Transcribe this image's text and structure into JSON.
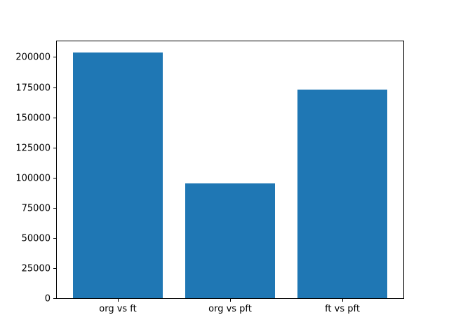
{
  "figure": {
    "background": "#ffffff",
    "spine_color": "#000000",
    "text_color": "#000000"
  },
  "chart_data": {
    "type": "bar",
    "title": "",
    "xlabel": "",
    "ylabel": "",
    "categories": [
      "org vs ft",
      "org vs pft",
      "ft vs pft"
    ],
    "values": [
      204000,
      95000,
      173000
    ],
    "yticks": [
      0,
      25000,
      50000,
      75000,
      100000,
      125000,
      150000,
      175000,
      200000
    ],
    "ytick_labels": [
      "0",
      "25000",
      "50000",
      "75000",
      "100000",
      "125000",
      "150000",
      "175000",
      "200000"
    ],
    "ylim": [
      0,
      214200
    ],
    "xlim": [
      -0.55,
      2.55
    ],
    "bar_width": 0.8,
    "bar_color": "#1f77b4",
    "grid": false,
    "legend": null
  }
}
